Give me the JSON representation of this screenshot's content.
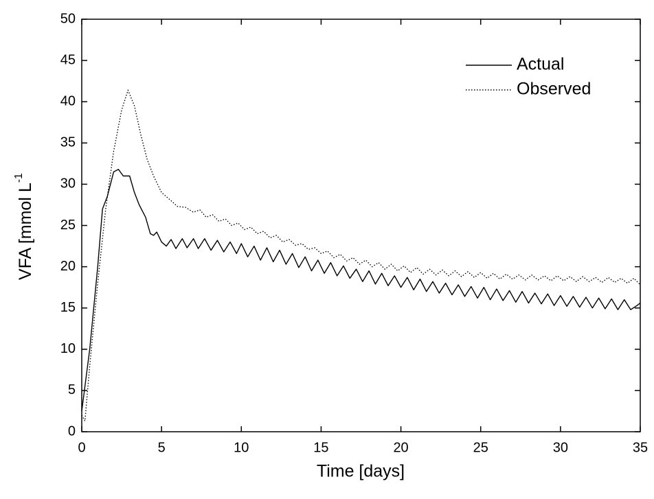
{
  "chart_data": {
    "type": "line",
    "xlabel": "Time [days]",
    "ylabel": "VFA [mmol L",
    "ylabel_superscript": "-1",
    "xlim": [
      0,
      35
    ],
    "xticks": [
      0,
      5,
      10,
      15,
      20,
      25,
      30,
      35
    ],
    "ylim": [
      0,
      50
    ],
    "yticks": [
      0,
      5,
      10,
      15,
      20,
      25,
      30,
      35,
      40,
      45,
      50
    ],
    "legend": "upper right",
    "series": [
      {
        "name": "Actual",
        "color": "#000000",
        "style": "solid",
        "x": [
          0,
          0.5,
          1.0,
          1.3,
          1.6,
          2.0,
          2.3,
          2.6,
          3.0,
          3.3,
          3.6,
          4.0,
          4.3,
          4.5,
          4.7,
          5.0,
          5.3,
          5.6,
          5.9,
          6.3,
          6.6,
          7.0,
          7.3,
          7.7,
          8.1,
          8.5,
          8.9,
          9.3,
          9.7,
          10.0,
          10.4,
          10.8,
          11.2,
          11.6,
          12.0,
          12.4,
          12.8,
          13.2,
          13.6,
          14.0,
          14.4,
          14.8,
          15.2,
          15.6,
          16.0,
          16.4,
          16.8,
          17.2,
          17.6,
          18.0,
          18.4,
          18.8,
          19.2,
          19.6,
          20.0,
          20.4,
          20.8,
          21.2,
          21.6,
          22.0,
          22.4,
          22.8,
          23.2,
          23.6,
          24.0,
          24.4,
          24.8,
          25.2,
          25.6,
          26.0,
          26.4,
          26.8,
          27.2,
          27.6,
          28.0,
          28.4,
          28.8,
          29.2,
          29.6,
          30.0,
          30.4,
          30.8,
          31.2,
          31.6,
          32.0,
          32.4,
          32.8,
          33.2,
          33.6,
          34.0,
          34.4,
          34.8,
          35.0
        ],
        "values": [
          2.5,
          10,
          20,
          27,
          28.5,
          31.5,
          31.8,
          31,
          31,
          29,
          27.5,
          26,
          24,
          23.8,
          24.2,
          23,
          22.5,
          23.3,
          22.2,
          23.4,
          22.3,
          23.4,
          22.2,
          23.4,
          22.0,
          23.2,
          21.8,
          23.0,
          21.6,
          22.8,
          21.2,
          22.5,
          20.8,
          22.3,
          20.6,
          22.0,
          20.3,
          21.6,
          19.9,
          21.2,
          19.5,
          20.8,
          19.2,
          20.5,
          18.9,
          20.1,
          18.6,
          19.7,
          18.2,
          19.5,
          17.9,
          19.2,
          17.7,
          18.9,
          17.5,
          18.7,
          17.2,
          18.5,
          17.0,
          18.2,
          16.8,
          18.0,
          16.6,
          17.8,
          16.4,
          17.6,
          16.2,
          17.5,
          16.0,
          17.3,
          15.9,
          17.1,
          15.7,
          17.0,
          15.6,
          16.8,
          15.5,
          16.7,
          15.3,
          16.5,
          15.2,
          16.4,
          15.1,
          16.3,
          15.0,
          16.2,
          14.9,
          16.1,
          14.8,
          16.0,
          14.8,
          15.3,
          15.6
        ]
      },
      {
        "name": "Observed",
        "color": "#000000",
        "style": "dotted",
        "x": [
          0,
          0.2,
          0.5,
          1.0,
          1.5,
          2.0,
          2.5,
          2.9,
          3.3,
          3.7,
          4.1,
          4.5,
          5.0,
          5.3,
          5.6,
          6.0,
          6.5,
          7.0,
          7.4,
          7.8,
          8.2,
          8.6,
          9.0,
          9.4,
          9.8,
          10.2,
          10.6,
          11.0,
          11.4,
          11.8,
          12.2,
          12.6,
          13.0,
          13.4,
          13.8,
          14.2,
          14.6,
          15.0,
          15.4,
          15.8,
          16.2,
          16.6,
          17.0,
          17.4,
          17.8,
          18.2,
          18.6,
          19.0,
          19.4,
          19.8,
          20.2,
          20.6,
          21.0,
          21.4,
          21.8,
          22.2,
          22.6,
          23.0,
          23.4,
          23.8,
          24.2,
          24.6,
          25.0,
          25.4,
          25.8,
          26.2,
          26.6,
          27.0,
          27.4,
          27.8,
          28.2,
          28.6,
          29.0,
          29.4,
          29.8,
          30.2,
          30.6,
          31.0,
          31.4,
          31.8,
          32.2,
          32.6,
          33.0,
          33.4,
          33.8,
          34.2,
          34.6,
          35.0
        ],
        "values": [
          2,
          1.3,
          8,
          18,
          27,
          34,
          39,
          41.4,
          39.5,
          36,
          33,
          31,
          29,
          28.5,
          28,
          27.3,
          27.2,
          26.6,
          26.9,
          26.0,
          26.3,
          25.5,
          25.8,
          25.0,
          25.3,
          24.5,
          24.8,
          24.0,
          24.3,
          23.5,
          23.8,
          23.0,
          23.3,
          22.6,
          22.8,
          22.1,
          22.3,
          21.6,
          21.9,
          21.1,
          21.5,
          20.7,
          21.1,
          20.3,
          20.8,
          20.0,
          20.5,
          19.7,
          20.3,
          19.5,
          20.1,
          19.3,
          19.9,
          19.1,
          19.7,
          19.0,
          19.6,
          18.9,
          19.5,
          18.8,
          19.4,
          18.7,
          19.3,
          18.6,
          19.2,
          18.5,
          19.1,
          18.5,
          19.0,
          18.4,
          19.0,
          18.4,
          18.9,
          18.3,
          18.9,
          18.3,
          18.8,
          18.2,
          18.8,
          18.2,
          18.7,
          18.1,
          18.7,
          18.1,
          18.6,
          18.0,
          18.6,
          17.8
        ]
      }
    ]
  }
}
